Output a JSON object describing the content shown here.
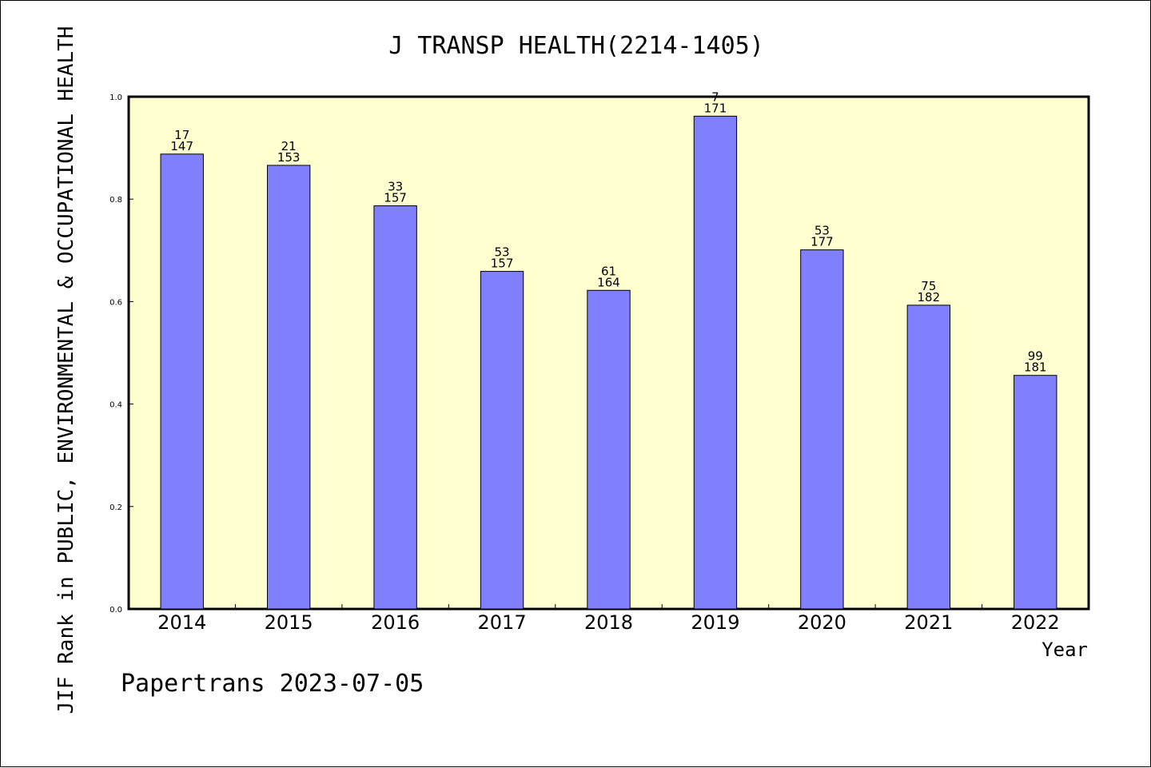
{
  "footer": "Papertrans 2023-07-05",
  "colors": {
    "plot_background": "#ffffd0",
    "bar_fill": "#8080ff",
    "bar_stroke": "#000000"
  },
  "chart_data": {
    "type": "bar",
    "title": "J TRANSP HEALTH(2214-1405)",
    "xlabel": "Year",
    "ylabel": "JIF Rank in PUBLIC, ENVIRONMENTAL & OCCUPATIONAL HEALTH",
    "ylim": [
      0,
      1.0
    ],
    "yticks": [
      "0.0",
      "0.2",
      "0.4",
      "0.6",
      "0.8",
      "1.0"
    ],
    "grid": false,
    "categories": [
      "2014",
      "2015",
      "2016",
      "2017",
      "2018",
      "2019",
      "2020",
      "2021",
      "2022"
    ],
    "values": [
      0.888,
      0.866,
      0.787,
      0.659,
      0.622,
      0.962,
      0.701,
      0.593,
      0.456
    ],
    "labels_rank": [
      "17",
      "21",
      "33",
      "53",
      "61",
      "7",
      "53",
      "75",
      "99"
    ],
    "labels_total": [
      "147",
      "153",
      "157",
      "157",
      "164",
      "171",
      "177",
      "182",
      "181"
    ]
  }
}
